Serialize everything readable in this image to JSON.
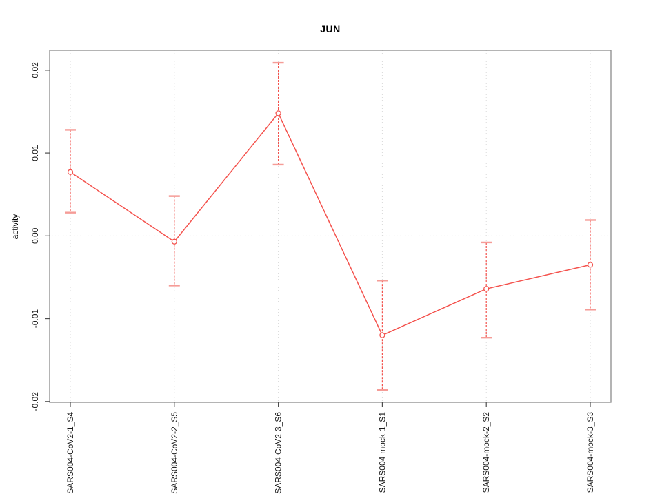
{
  "chart_data": {
    "type": "line",
    "title": "JUN",
    "xlabel": "",
    "ylabel": "activity",
    "categories": [
      "SARS004-CoV2-1_S4",
      "SARS004-CoV2-2_S5",
      "SARS004-CoV2-3_S6",
      "SARS004-mock-1_S1",
      "SARS004-mock-2_S2",
      "SARS004-mock-3_S3"
    ],
    "series": [
      {
        "name": "activity",
        "values": [
          0.0077,
          -0.0007,
          0.0148,
          -0.012,
          -0.0064,
          -0.0035
        ],
        "error_upper": [
          0.0128,
          0.0048,
          0.0209,
          -0.0054,
          -0.0008,
          0.0019
        ],
        "error_lower": [
          0.0028,
          -0.006,
          0.0086,
          -0.0186,
          -0.0123,
          -0.0089
        ]
      }
    ],
    "yticks": [
      -0.02,
      -0.01,
      0,
      0.01,
      0.02
    ],
    "ytick_labels": [
      "-0.02",
      "-0.01",
      "0.00",
      "0.01",
      "0.02"
    ],
    "ylim": [
      -0.0201,
      0.0224
    ],
    "grid": {
      "vertical": "dotted line at each category",
      "horizontal": "dotted line at y = 0",
      "style": "dotted"
    },
    "legend": "none",
    "colors": {
      "line": "#f4524d",
      "point": "#f4524d",
      "error_stem": "#f4524d",
      "error_cap": "#f59c97",
      "grid": "#d9d9d9",
      "axis_box": "#8c8c8c",
      "tick": "#4d4d4d",
      "text": "#1a1a1a"
    }
  }
}
